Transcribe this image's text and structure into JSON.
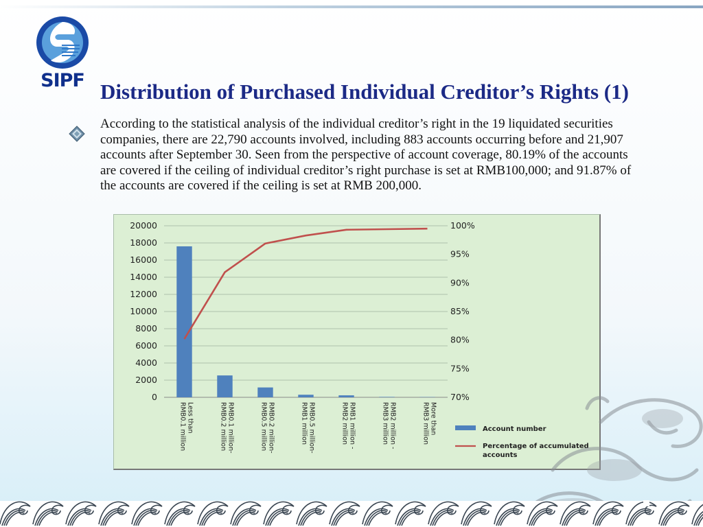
{
  "logo": {
    "text": "SIPF"
  },
  "slide": {
    "title": "Distribution of Purchased Individual Creditor’s Rights (1)",
    "body": "According to the statistical analysis of the individual creditor’s right in the 19 liquidated securities companies, there are 22,790 accounts involved, including 883 accounts occurring before and 21,907 accounts after September 30. Seen from the perspective of account coverage, 80.19% of the accounts are covered if the ceiling of individual creditor’s right purchase is set at RMB100,000; and 91.87% of the accounts are covered if the ceiling is set at RMB 200,000."
  },
  "colors": {
    "title": "#1c2a86",
    "chart_bg": "#dcefd4",
    "bar": "#4f81bd",
    "line": "#c0504d",
    "logo_blue": "#10308c"
  },
  "chart_data": {
    "type": "bar",
    "categories": [
      [
        "Less than",
        "RMB0.1 million"
      ],
      [
        "RMB0.1 million-",
        "RMB0.2 million"
      ],
      [
        "RMB0.2 million-",
        "RMB0.5 million"
      ],
      [
        "RMB0.5 million-",
        "RMB1 million"
      ],
      [
        "RMB1 million -",
        "RMB2 million"
      ],
      [
        "RMB2 million -",
        "RMB3 million"
      ],
      [
        "More than",
        "RMB3 million"
      ]
    ],
    "series": [
      {
        "name": "Account number",
        "type": "bar",
        "axis": "left",
        "values": [
          17600,
          2550,
          1150,
          300,
          230,
          50,
          30
        ]
      },
      {
        "name": "Percentage of accumulated accounts",
        "type": "line",
        "axis": "right",
        "values": [
          80.19,
          91.87,
          96.9,
          98.3,
          99.3,
          99.4,
          99.5
        ]
      }
    ],
    "y_left": {
      "min": 0,
      "max": 20000,
      "step": 2000,
      "ticks": [
        "0",
        "2000",
        "4000",
        "6000",
        "8000",
        "10000",
        "12000",
        "14000",
        "16000",
        "18000",
        "20000"
      ]
    },
    "y_right": {
      "min": 70,
      "max": 100,
      "step": 5,
      "ticks": [
        "70%",
        "75%",
        "80%",
        "85%",
        "90%",
        "95%",
        "100%"
      ]
    },
    "grid": true,
    "legend_position": "bottom-right"
  }
}
